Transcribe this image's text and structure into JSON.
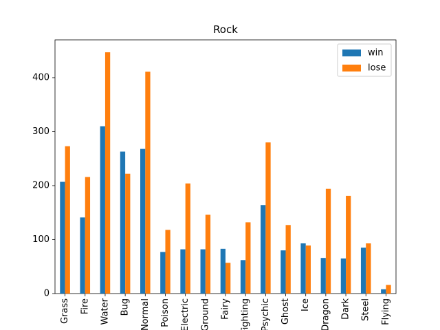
{
  "chart_data": {
    "type": "bar",
    "title": "Rock",
    "xlabel": "",
    "ylabel": "",
    "categories": [
      "Grass",
      "Fire",
      "Water",
      "Bug",
      "Normal",
      "Poison",
      "Electric",
      "Ground",
      "Fairy",
      "Fighting",
      "Psychic",
      "Ghost",
      "Ice",
      "Dragon",
      "Dark",
      "Steel",
      "Flying"
    ],
    "series": [
      {
        "name": "win",
        "color": "#1f77b4",
        "values": [
          207,
          141,
          310,
          263,
          268,
          77,
          82,
          82,
          83,
          62,
          164,
          80,
          93,
          66,
          65,
          85,
          8
        ]
      },
      {
        "name": "lose",
        "color": "#ff7f0e",
        "values": [
          273,
          216,
          447,
          222,
          411,
          118,
          204,
          146,
          57,
          132,
          280,
          127,
          89,
          194,
          181,
          93,
          16
        ]
      }
    ],
    "ylim": [
      0,
      470
    ],
    "yticks": [
      0,
      100,
      200,
      300,
      400
    ],
    "grid": false,
    "legend_position": "top-right"
  }
}
